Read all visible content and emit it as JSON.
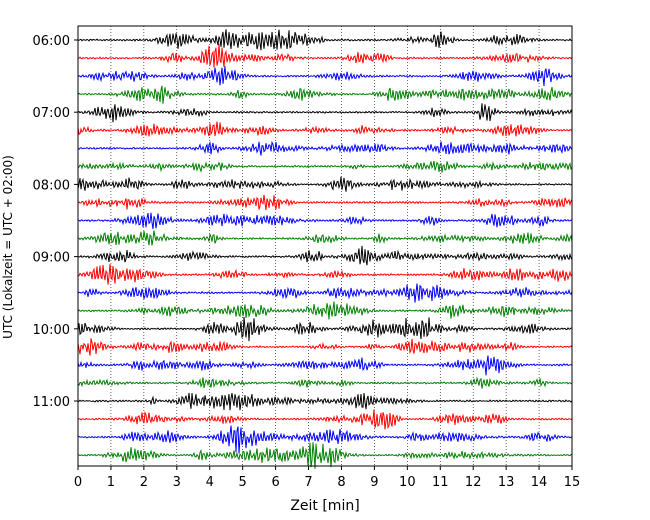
{
  "chart_data": {
    "type": "line",
    "title": "",
    "xlabel": "Zeit  [min]",
    "ylabel": "UTC (Lokalzeit = UTC + 02:00)",
    "xlim": [
      0,
      15
    ],
    "x_ticks": [
      "0",
      "1",
      "2",
      "3",
      "4",
      "5",
      "6",
      "7",
      "8",
      "9",
      "10",
      "11",
      "12",
      "13",
      "14",
      "15"
    ],
    "y_tick_labels": [
      "06:00",
      "07:00",
      "08:00",
      "09:00",
      "10:00",
      "11:00"
    ],
    "y_tick_rows": [
      0,
      4,
      8,
      12,
      16,
      20
    ],
    "row_interval_minutes": 15,
    "row_count": 24,
    "trace_colors": [
      "#000000",
      "#ff0000",
      "#0000ff",
      "#008000"
    ],
    "vertical_grid": "dotted",
    "legend": "none"
  }
}
